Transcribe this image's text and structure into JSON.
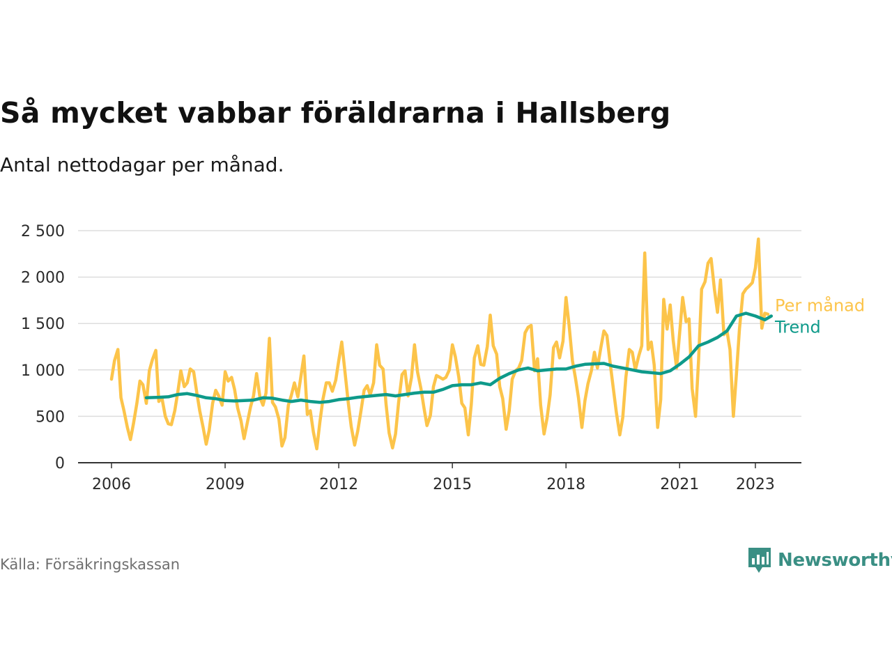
{
  "title": "Så mycket vabbar föräldrarna i Hallsberg",
  "subtitle": "Antal nettodagar per månad.",
  "source": "Källa: Försäkringskassan",
  "brand": "Newsworthy",
  "colors": {
    "per_month": "#fcc44a",
    "trend": "#0e9a8a",
    "grid": "#dddddd",
    "axis": "#333333",
    "brand": "#3a8f84"
  },
  "chart_data": {
    "type": "line",
    "ylim": [
      0,
      2500
    ],
    "yticks": [
      0,
      500,
      1000,
      1500,
      2000,
      2500
    ],
    "ytick_labels": [
      "0",
      "500",
      "1 000",
      "1 500",
      "2 000",
      "2 500"
    ],
    "xlim": [
      2006.0,
      2023.9
    ],
    "xticks": [
      2006,
      2009,
      2012,
      2015,
      2018,
      2021,
      2023
    ],
    "xtick_labels": [
      "2006",
      "2009",
      "2012",
      "2015",
      "2018",
      "2021",
      "2023"
    ],
    "grid": true,
    "legend": "end-of-line labels, right",
    "series": [
      {
        "name": "Per månad",
        "x": [
          2006.0,
          2006.08,
          2006.17,
          2006.25,
          2006.33,
          2006.42,
          2006.5,
          2006.58,
          2006.67,
          2006.75,
          2006.83,
          2006.92,
          2007.0,
          2007.08,
          2007.17,
          2007.25,
          2007.33,
          2007.42,
          2007.5,
          2007.58,
          2007.67,
          2007.75,
          2007.83,
          2007.92,
          2008.0,
          2008.08,
          2008.17,
          2008.25,
          2008.33,
          2008.42,
          2008.5,
          2008.58,
          2008.67,
          2008.75,
          2008.83,
          2008.92,
          2009.0,
          2009.08,
          2009.17,
          2009.25,
          2009.33,
          2009.42,
          2009.5,
          2009.58,
          2009.67,
          2009.75,
          2009.83,
          2009.92,
          2010.0,
          2010.08,
          2010.17,
          2010.25,
          2010.33,
          2010.42,
          2010.5,
          2010.58,
          2010.67,
          2010.75,
          2010.83,
          2010.92,
          2011.0,
          2011.08,
          2011.17,
          2011.25,
          2011.33,
          2011.42,
          2011.5,
          2011.58,
          2011.67,
          2011.75,
          2011.83,
          2011.92,
          2012.0,
          2012.08,
          2012.17,
          2012.25,
          2012.33,
          2012.42,
          2012.5,
          2012.58,
          2012.67,
          2012.75,
          2012.83,
          2012.92,
          2013.0,
          2013.08,
          2013.17,
          2013.25,
          2013.33,
          2013.42,
          2013.5,
          2013.58,
          2013.67,
          2013.75,
          2013.83,
          2013.92,
          2014.0,
          2014.08,
          2014.17,
          2014.25,
          2014.33,
          2014.42,
          2014.5,
          2014.58,
          2014.67,
          2014.75,
          2014.83,
          2014.92,
          2015.0,
          2015.08,
          2015.17,
          2015.25,
          2015.33,
          2015.42,
          2015.5,
          2015.58,
          2015.67,
          2015.75,
          2015.83,
          2015.92,
          2016.0,
          2016.08,
          2016.17,
          2016.25,
          2016.33,
          2016.42,
          2016.5,
          2016.58,
          2016.67,
          2016.75,
          2016.83,
          2016.92,
          2017.0,
          2017.08,
          2017.17,
          2017.25,
          2017.33,
          2017.42,
          2017.5,
          2017.58,
          2017.67,
          2017.75,
          2017.83,
          2017.92,
          2018.0,
          2018.08,
          2018.17,
          2018.25,
          2018.33,
          2018.42,
          2018.5,
          2018.58,
          2018.67,
          2018.75,
          2018.83,
          2018.92,
          2019.0,
          2019.08,
          2019.17,
          2019.25,
          2019.33,
          2019.42,
          2019.5,
          2019.58,
          2019.67,
          2019.75,
          2019.83,
          2019.92,
          2020.0,
          2020.08,
          2020.17,
          2020.25,
          2020.33,
          2020.42,
          2020.5,
          2020.58,
          2020.67,
          2020.75,
          2020.83,
          2020.92,
          2021.0,
          2021.08,
          2021.17,
          2021.25,
          2021.33,
          2021.42,
          2021.5,
          2021.58,
          2021.67,
          2021.75,
          2021.83,
          2021.92,
          2022.0,
          2022.08,
          2022.17,
          2022.25,
          2022.33,
          2022.42,
          2022.5,
          2022.58,
          2022.67,
          2022.75,
          2022.83,
          2022.92,
          2023.0,
          2023.08,
          2023.17,
          2023.25,
          2023.33
        ],
        "values": [
          900,
          1100,
          1220,
          700,
          560,
          380,
          250,
          420,
          640,
          880,
          840,
          640,
          990,
          1110,
          1210,
          660,
          700,
          500,
          420,
          410,
          560,
          760,
          990,
          820,
          860,
          1010,
          980,
          760,
          560,
          380,
          200,
          350,
          640,
          780,
          720,
          620,
          980,
          880,
          920,
          790,
          590,
          450,
          260,
          420,
          600,
          720,
          960,
          700,
          620,
          750,
          1340,
          650,
          600,
          470,
          180,
          270,
          620,
          730,
          860,
          710,
          930,
          1150,
          520,
          560,
          330,
          150,
          430,
          680,
          860,
          860,
          770,
          890,
          1100,
          1300,
          960,
          650,
          390,
          190,
          340,
          540,
          780,
          830,
          730,
          860,
          1270,
          1050,
          1010,
          630,
          320,
          160,
          310,
          650,
          950,
          990,
          720,
          920,
          1270,
          980,
          800,
          590,
          400,
          510,
          820,
          940,
          920,
          900,
          920,
          1000,
          1270,
          1140,
          920,
          640,
          590,
          300,
          630,
          1130,
          1260,
          1060,
          1050,
          1250,
          1590,
          1260,
          1170,
          820,
          690,
          360,
          560,
          900,
          990,
          1020,
          1100,
          1400,
          1460,
          1480,
          990,
          1120,
          620,
          310,
          480,
          730,
          1240,
          1300,
          1130,
          1310,
          1780,
          1490,
          1100,
          910,
          700,
          380,
          670,
          850,
          990,
          1190,
          1020,
          1240,
          1420,
          1370,
          1060,
          800,
          540,
          300,
          490,
          920,
          1220,
          1190,
          1000,
          1150,
          1260,
          2260,
          1220,
          1300,
          1050,
          380,
          680,
          1760,
          1440,
          1700,
          1320,
          1020,
          1400,
          1780,
          1520,
          1550,
          800,
          500,
          1100,
          1870,
          1950,
          2150,
          2200,
          1860,
          1620,
          1970,
          1380,
          1420,
          1220,
          500,
          960,
          1440,
          1820,
          1870,
          1900,
          1940,
          2100,
          2410,
          1450,
          1610,
          1600
        ]
      },
      {
        "name": "Trend",
        "x": [
          2006.92,
          2007.25,
          2007.5,
          2007.75,
          2008.0,
          2008.25,
          2008.5,
          2008.75,
          2009.0,
          2009.25,
          2009.5,
          2009.75,
          2010.0,
          2010.25,
          2010.5,
          2010.75,
          2011.0,
          2011.25,
          2011.5,
          2011.75,
          2012.0,
          2012.25,
          2012.5,
          2012.75,
          2013.0,
          2013.25,
          2013.5,
          2013.75,
          2014.0,
          2014.25,
          2014.5,
          2014.75,
          2015.0,
          2015.25,
          2015.5,
          2015.75,
          2016.0,
          2016.25,
          2016.5,
          2016.75,
          2017.0,
          2017.25,
          2017.5,
          2017.75,
          2018.0,
          2018.25,
          2018.5,
          2018.75,
          2019.0,
          2019.25,
          2019.5,
          2019.75,
          2020.0,
          2020.25,
          2020.5,
          2020.75,
          2021.0,
          2021.25,
          2021.5,
          2021.75,
          2022.0,
          2022.25,
          2022.5,
          2022.75,
          2023.0,
          2023.25,
          2023.42
        ],
        "values": [
          700,
          705,
          710,
          735,
          745,
          725,
          700,
          690,
          670,
          665,
          670,
          675,
          700,
          695,
          675,
          660,
          675,
          660,
          650,
          660,
          680,
          690,
          705,
          715,
          725,
          735,
          720,
          735,
          750,
          760,
          760,
          790,
          830,
          840,
          840,
          860,
          840,
          910,
          960,
          1000,
          1020,
          990,
          1000,
          1010,
          1010,
          1040,
          1060,
          1065,
          1070,
          1040,
          1020,
          1000,
          980,
          970,
          960,
          990,
          1060,
          1140,
          1260,
          1300,
          1350,
          1420,
          1580,
          1610,
          1580,
          1540,
          1580
        ]
      }
    ]
  }
}
